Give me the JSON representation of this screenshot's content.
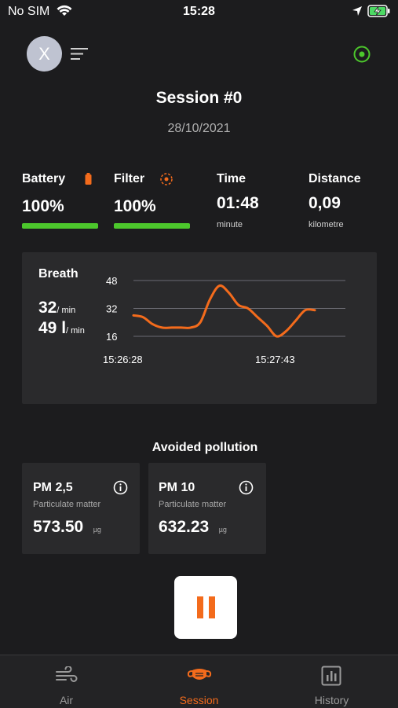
{
  "status_bar": {
    "carrier": "No SIM",
    "time": "15:28"
  },
  "header": {
    "avatar_initial": "X"
  },
  "session": {
    "title": "Session #0",
    "date": "28/10/2021"
  },
  "stats": {
    "battery": {
      "label": "Battery",
      "value": "100%",
      "level": 1.0
    },
    "filter": {
      "label": "Filter",
      "value": "100%",
      "level": 1.0
    },
    "time": {
      "label": "Time",
      "value": "01:48",
      "unit": "minute"
    },
    "distance": {
      "label": "Distance",
      "value": "0,09",
      "unit": "kilometre"
    }
  },
  "breath": {
    "title": "Breath",
    "rate_value": "32",
    "rate_unit": "/ min",
    "volume_value": "49 l",
    "volume_unit": "/ min"
  },
  "chart_data": {
    "type": "line",
    "y_ticks": [
      "48",
      "32",
      "16"
    ],
    "ylim": [
      16,
      48
    ],
    "x_ticks": [
      "15:26:28",
      "15:27:43"
    ],
    "series": [
      {
        "values": [
          28,
          27,
          23,
          21,
          21,
          21,
          21,
          24,
          37,
          45,
          41,
          34,
          32,
          27,
          22,
          16,
          19,
          25,
          31,
          31
        ]
      }
    ],
    "color": "#f36b1c"
  },
  "pollution": {
    "title": "Avoided pollution",
    "cards": [
      {
        "name": "PM 2,5",
        "subtitle": "Particulate matter",
        "value": "573.50",
        "unit": "µg"
      },
      {
        "name": "PM 10",
        "subtitle": "Particulate matter",
        "value": "632.23",
        "unit": "µg"
      }
    ]
  },
  "tabs": [
    {
      "label": "Air",
      "icon": "wind-icon",
      "active": false
    },
    {
      "label": "Session",
      "icon": "mask-icon",
      "active": true
    },
    {
      "label": "History",
      "icon": "bar-chart-icon",
      "active": false
    }
  ],
  "colors": {
    "accent": "#f36b1c",
    "ok": "#4cc72c",
    "background": "#1c1c1e",
    "card": "#2a2a2c"
  }
}
